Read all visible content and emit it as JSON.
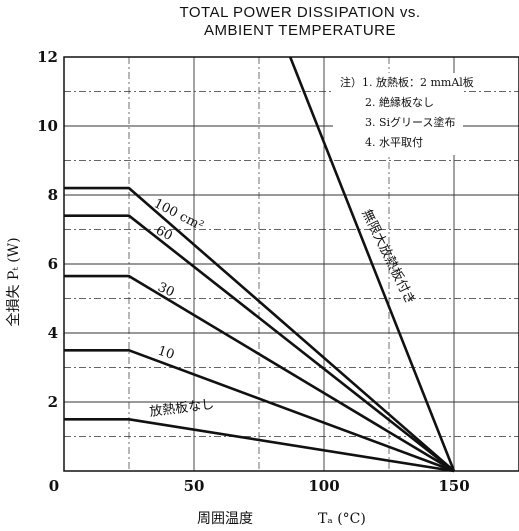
{
  "chart_data": {
    "type": "line",
    "title_line1": "TOTAL POWER DISSIPATION vs.",
    "title_line2": "AMBIENT TEMPERATURE",
    "ylabel": "全損失 Pₜ (W)",
    "xlabel_main": "周囲温度",
    "xlabel_symbol": "Tₐ (°C)",
    "xlim": [
      0,
      175
    ],
    "ylim": [
      0,
      12
    ],
    "x_ticks": [
      0,
      50,
      100,
      150
    ],
    "y_ticks": [
      2,
      4,
      6,
      8,
      10,
      12
    ],
    "grid": true,
    "notes": [
      "注）1. 放熱板：2 mmAl板",
      "2. 絶縁板なし",
      "3. Siグリース塗布",
      "4. 水平取付"
    ],
    "series": [
      {
        "name": "100 cm²",
        "x": [
          0,
          25,
          150
        ],
        "y": [
          8.2,
          8.2,
          0
        ]
      },
      {
        "name": "60",
        "x": [
          0,
          25,
          150
        ],
        "y": [
          7.4,
          7.4,
          0
        ]
      },
      {
        "name": "30",
        "x": [
          0,
          25,
          150
        ],
        "y": [
          5.65,
          5.65,
          0
        ]
      },
      {
        "name": "10",
        "x": [
          0,
          25,
          150
        ],
        "y": [
          3.5,
          3.5,
          0
        ]
      },
      {
        "name": "放熱板なし",
        "x": [
          0,
          25,
          150
        ],
        "y": [
          1.5,
          1.5,
          0
        ]
      },
      {
        "name": "無限大放熱板付き",
        "x": [
          87,
          150
        ],
        "y": [
          12,
          0
        ]
      }
    ]
  }
}
